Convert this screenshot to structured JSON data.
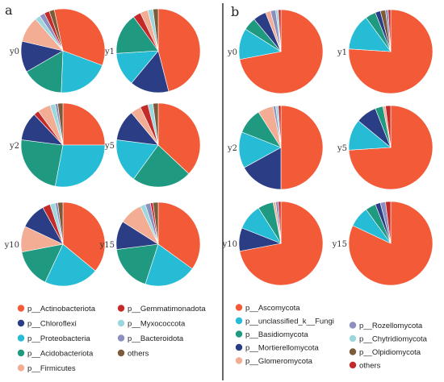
{
  "panels": [
    {
      "label": "a",
      "legend": [
        {
          "name": "p__Actinobacteriota",
          "color": "#f25a38"
        },
        {
          "name": "p__Chloroflexi",
          "color": "#2b3d85"
        },
        {
          "name": "p__Proteobacteria",
          "color": "#26bcd6"
        },
        {
          "name": "p__Acidobacteriota",
          "color": "#1f9a80"
        },
        {
          "name": "p__Firmicutes",
          "color": "#f2ad94"
        },
        {
          "name": "p__Gemmatimonadota",
          "color": "#c42a2a"
        },
        {
          "name": "p__Myxococcota",
          "color": "#9bd7dc"
        },
        {
          "name": "p__Bacteroidota",
          "color": "#8d8fbe"
        },
        {
          "name": "others",
          "color": "#7c5a3a"
        }
      ]
    },
    {
      "label": "b",
      "legend": [
        {
          "name": "p__Ascomycota",
          "color": "#f25a38"
        },
        {
          "name": "p__unclassified_k__Fungi",
          "color": "#26bcd6"
        },
        {
          "name": "p__Basidiomycota",
          "color": "#1f9a80"
        },
        {
          "name": "p__Mortierellomycota",
          "color": "#2b3d85"
        },
        {
          "name": "p__Glomeromycota",
          "color": "#f2ad94"
        },
        {
          "name": "p__Rozellomycota",
          "color": "#8d8fbe"
        },
        {
          "name": "p__Chytridiomycota",
          "color": "#9bd7dc"
        },
        {
          "name": "p__Olpidiomycota",
          "color": "#7c5a3a"
        },
        {
          "name": "others",
          "color": "#c42a2a"
        }
      ]
    }
  ],
  "chart_data": [
    {
      "type": "pie",
      "panel": "a",
      "label": "y0",
      "start_angle": -12,
      "slices": [
        {
          "name": "p__Actinobacteriota",
          "value": 34
        },
        {
          "name": "p__Proteobacteria",
          "value": 20
        },
        {
          "name": "p__Acidobacteriota",
          "value": 16
        },
        {
          "name": "p__Chloroflexi",
          "value": 12
        },
        {
          "name": "p__Firmicutes",
          "value": 10
        },
        {
          "name": "p__Myxococcota",
          "value": 2
        },
        {
          "name": "p__Bacteroidota",
          "value": 2
        },
        {
          "name": "p__Gemmatimonadota",
          "value": 2
        },
        {
          "name": "others",
          "value": 2
        }
      ]
    },
    {
      "type": "pie",
      "panel": "a",
      "label": "y1",
      "start_angle": 0,
      "slices": [
        {
          "name": "p__Actinobacteriota",
          "value": 46
        },
        {
          "name": "p__Chloroflexi",
          "value": 15
        },
        {
          "name": "p__Proteobacteria",
          "value": 13
        },
        {
          "name": "p__Acidobacteriota",
          "value": 16
        },
        {
          "name": "p__Gemmatimonadota",
          "value": 3
        },
        {
          "name": "p__Firmicutes",
          "value": 3
        },
        {
          "name": "p__Myxococcota",
          "value": 2
        },
        {
          "name": "others",
          "value": 2
        }
      ]
    },
    {
      "type": "pie",
      "panel": "a",
      "label": "y2",
      "start_angle": 0,
      "slices": [
        {
          "name": "p__Actinobacteriota",
          "value": 25
        },
        {
          "name": "p__Proteobacteria",
          "value": 28
        },
        {
          "name": "p__Acidobacteriota",
          "value": 24
        },
        {
          "name": "p__Chloroflexi",
          "value": 11
        },
        {
          "name": "p__Gemmatimonadota",
          "value": 2
        },
        {
          "name": "p__Firmicutes",
          "value": 5
        },
        {
          "name": "p__Myxococcota",
          "value": 2
        },
        {
          "name": "p__Bacteroidota",
          "value": 1
        },
        {
          "name": "others",
          "value": 2
        }
      ]
    },
    {
      "type": "pie",
      "panel": "a",
      "label": "y5",
      "start_angle": 0,
      "slices": [
        {
          "name": "p__Actinobacteriota",
          "value": 37
        },
        {
          "name": "p__Acidobacteriota",
          "value": 23
        },
        {
          "name": "p__Proteobacteria",
          "value": 17
        },
        {
          "name": "p__Chloroflexi",
          "value": 12
        },
        {
          "name": "p__Firmicutes",
          "value": 4
        },
        {
          "name": "p__Gemmatimonadota",
          "value": 3
        },
        {
          "name": "p__Myxococcota",
          "value": 2
        },
        {
          "name": "others",
          "value": 2
        }
      ]
    },
    {
      "type": "pie",
      "panel": "a",
      "label": "y10",
      "start_angle": 0,
      "slices": [
        {
          "name": "p__Actinobacteriota",
          "value": 36
        },
        {
          "name": "p__Proteobacteria",
          "value": 21
        },
        {
          "name": "p__Acidobacteriota",
          "value": 15
        },
        {
          "name": "p__Firmicutes",
          "value": 10
        },
        {
          "name": "p__Chloroflexi",
          "value": 10
        },
        {
          "name": "p__Gemmatimonadota",
          "value": 3
        },
        {
          "name": "p__Myxococcota",
          "value": 2
        },
        {
          "name": "p__Bacteroidota",
          "value": 1
        },
        {
          "name": "others",
          "value": 2
        }
      ]
    },
    {
      "type": "pie",
      "panel": "a",
      "label": "y15",
      "start_angle": 0,
      "slices": [
        {
          "name": "p__Actinobacteriota",
          "value": 35
        },
        {
          "name": "p__Proteobacteria",
          "value": 20
        },
        {
          "name": "p__Acidobacteriota",
          "value": 18
        },
        {
          "name": "p__Chloroflexi",
          "value": 11
        },
        {
          "name": "p__Firmicutes",
          "value": 9
        },
        {
          "name": "p__Myxococcota",
          "value": 2
        },
        {
          "name": "p__Bacteroidota",
          "value": 2
        },
        {
          "name": "p__Gemmatimonadota",
          "value": 1
        },
        {
          "name": "others",
          "value": 2
        }
      ]
    },
    {
      "type": "pie",
      "panel": "b",
      "label": "y0",
      "start_angle": 0,
      "slices": [
        {
          "name": "p__Ascomycota",
          "value": 72
        },
        {
          "name": "p__unclassified_k__Fungi",
          "value": 12
        },
        {
          "name": "p__Basidiomycota",
          "value": 5
        },
        {
          "name": "p__Mortierellomycota",
          "value": 5
        },
        {
          "name": "p__Glomeromycota",
          "value": 2
        },
        {
          "name": "p__Rozellomycota",
          "value": 2
        },
        {
          "name": "p__Chytridiomycota",
          "value": 1
        },
        {
          "name": "others",
          "value": 1
        }
      ]
    },
    {
      "type": "pie",
      "panel": "b",
      "label": "y1",
      "start_angle": 0,
      "slices": [
        {
          "name": "p__Ascomycota",
          "value": 76
        },
        {
          "name": "p__unclassified_k__Fungi",
          "value": 14
        },
        {
          "name": "p__Basidiomycota",
          "value": 4
        },
        {
          "name": "p__Mortierellomycota",
          "value": 2
        },
        {
          "name": "p__Olpidiomycota",
          "value": 2
        },
        {
          "name": "p__Rozellomycota",
          "value": 1
        },
        {
          "name": "others",
          "value": 1
        }
      ]
    },
    {
      "type": "pie",
      "panel": "b",
      "label": "y2",
      "start_angle": 0,
      "slices": [
        {
          "name": "p__Ascomycota",
          "value": 50
        },
        {
          "name": "p__Mortierellomycota",
          "value": 17
        },
        {
          "name": "p__unclassified_k__Fungi",
          "value": 14
        },
        {
          "name": "p__Basidiomycota",
          "value": 10
        },
        {
          "name": "p__Glomeromycota",
          "value": 6
        },
        {
          "name": "p__Rozellomycota",
          "value": 1
        },
        {
          "name": "p__Chytridiomycota",
          "value": 1
        },
        {
          "name": "others",
          "value": 1
        }
      ]
    },
    {
      "type": "pie",
      "panel": "b",
      "label": "y5",
      "start_angle": 0,
      "slices": [
        {
          "name": "p__Ascomycota",
          "value": 74
        },
        {
          "name": "p__unclassified_k__Fungi",
          "value": 12
        },
        {
          "name": "p__Mortierellomycota",
          "value": 8
        },
        {
          "name": "p__Basidiomycota",
          "value": 3
        },
        {
          "name": "p__Glomeromycota",
          "value": 1
        },
        {
          "name": "others",
          "value": 2
        }
      ]
    },
    {
      "type": "pie",
      "panel": "b",
      "label": "y10",
      "start_angle": 0,
      "slices": [
        {
          "name": "p__Ascomycota",
          "value": 72
        },
        {
          "name": "p__Mortierellomycota",
          "value": 9
        },
        {
          "name": "p__unclassified_k__Fungi",
          "value": 10
        },
        {
          "name": "p__Basidiomycota",
          "value": 6
        },
        {
          "name": "p__Glomeromycota",
          "value": 1
        },
        {
          "name": "p__Rozellomycota",
          "value": 1
        },
        {
          "name": "others",
          "value": 1
        }
      ]
    },
    {
      "type": "pie",
      "panel": "b",
      "label": "y15",
      "start_angle": 0,
      "slices": [
        {
          "name": "p__Ascomycota",
          "value": 82
        },
        {
          "name": "p__unclassified_k__Fungi",
          "value": 8
        },
        {
          "name": "p__Basidiomycota",
          "value": 4
        },
        {
          "name": "p__Mortierellomycota",
          "value": 2
        },
        {
          "name": "p__Rozellomycota",
          "value": 2
        },
        {
          "name": "others",
          "value": 2
        }
      ]
    }
  ]
}
